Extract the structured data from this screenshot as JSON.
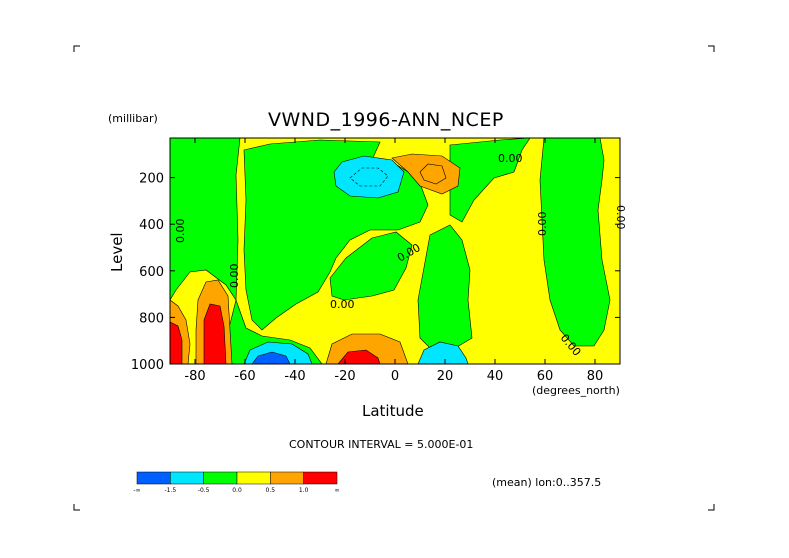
{
  "header": {
    "units_label": "(millibar)",
    "title": "VWND_1996-ANN_NCEP"
  },
  "footer": {
    "contour_interval": "CONTOUR INTERVAL = 5.000E-01",
    "subset": "(mean) lon:0..357.5"
  },
  "chart_data": {
    "type": "contour",
    "title": "VWND_1996-ANN_NCEP",
    "xlabel": "Latitude",
    "xunits": "(degrees_north)",
    "ylabel": "Level",
    "yunits": "(millibar)",
    "xlim": [
      -90,
      90
    ],
    "ylim": [
      1000,
      30
    ],
    "x_ticks": [
      {
        "value": -80,
        "label": "-80"
      },
      {
        "value": -60,
        "label": "-60"
      },
      {
        "value": -40,
        "label": "-40"
      },
      {
        "value": -20,
        "label": "-20"
      },
      {
        "value": 0,
        "label": "0"
      },
      {
        "value": 20,
        "label": "20"
      },
      {
        "value": 40,
        "label": "40"
      },
      {
        "value": 60,
        "label": "60"
      },
      {
        "value": 80,
        "label": "80"
      }
    ],
    "y_ticks": [
      {
        "value": 200,
        "label": "200"
      },
      {
        "value": 400,
        "label": "400"
      },
      {
        "value": 600,
        "label": "600"
      },
      {
        "value": 800,
        "label": "800"
      },
      {
        "value": 1000,
        "label": "1000"
      }
    ],
    "contour_interval": 0.5,
    "contour_labels": [
      "0.00",
      "0.00",
      "0.00",
      "0.00",
      "0.00",
      "0.00",
      "0.00",
      "0.00"
    ],
    "colorbar": {
      "colors": [
        "#0060ff",
        "#00e6ff",
        "#00ff00",
        "#ffff00",
        "#ffa500",
        "#ff0000"
      ],
      "labels": [
        "-∞",
        "-1.5",
        "-0.5",
        "0.0",
        "0.5",
        "1.0",
        "∞"
      ]
    }
  }
}
